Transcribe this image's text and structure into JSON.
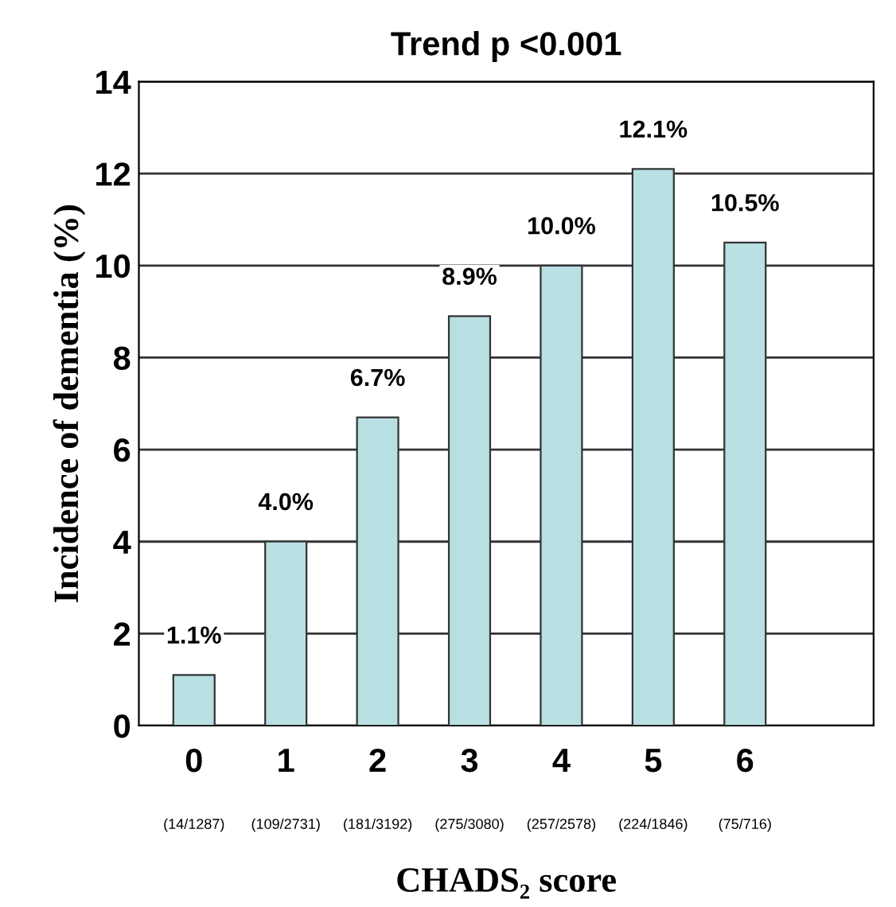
{
  "chart_data": {
    "type": "bar",
    "title": "Trend p <0.001",
    "xlabel": "CHADS₂ score",
    "ylabel": "Incidence of dementia (%)",
    "categories": [
      "0",
      "1",
      "2",
      "3",
      "4",
      "5",
      "6"
    ],
    "values": [
      1.1,
      4.0,
      6.7,
      8.9,
      10.0,
      12.1,
      10.5
    ],
    "value_labels": [
      "1.1%",
      "4.0%",
      "6.7%",
      "8.9%",
      "10.0%",
      "12.1%",
      "10.5%"
    ],
    "color": "#b8e0e3",
    "annotations": [
      "(14/1287)",
      "(109/2731)",
      "(181/3192)",
      "(275/3080)",
      "(257/2578)",
      "(224/1846)",
      "(75/716)"
    ],
    "ylim": [
      0,
      14
    ],
    "yticks": [
      0,
      2,
      4,
      6,
      8,
      10,
      12,
      14
    ],
    "grid": "y"
  }
}
